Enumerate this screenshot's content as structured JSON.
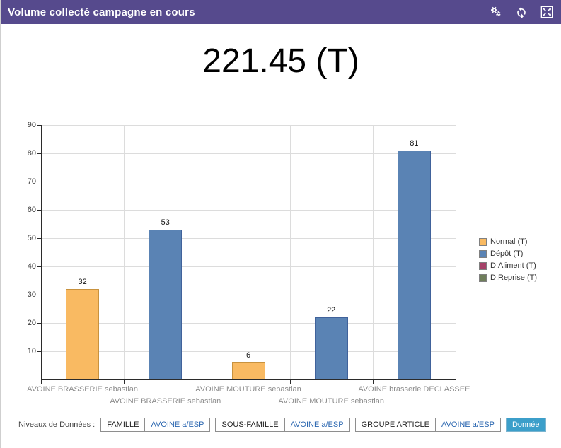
{
  "header": {
    "title": "Volume collecté campagne en cours"
  },
  "kpi": {
    "value": "221.45 (T)"
  },
  "chart_data": {
    "type": "bar",
    "title": "221.45 (T)",
    "categories": [
      "AVOINE BRASSERIE sebastian",
      "AVOINE BRASSERIE sebastian",
      "AVOINE MOUTURE sebastian",
      "AVOINE MOUTURE sebastian",
      "AVOINE brasserie DECLASSEE"
    ],
    "values": [
      32,
      53,
      6,
      22,
      81
    ],
    "value_series": [
      "Normal (T)",
      "Dépôt (T)",
      "Normal (T)",
      "Dépôt (T)",
      "Dépôt (T)"
    ],
    "series_colors": {
      "Normal (T)": {
        "fill": "#F9BA62",
        "border": "#C8923E"
      },
      "Dépôt (T)": {
        "fill": "#5A83B4",
        "border": "#40629B"
      },
      "D.Aliment (T)": {
        "fill": "#A64269",
        "border": "#7E3350"
      },
      "D.Reprise (T)": {
        "fill": "#6F7E5B",
        "border": "#556244"
      }
    },
    "legend": [
      {
        "label": "Normal (T)",
        "color": "#F9BA62"
      },
      {
        "label": "Dépôt (T)",
        "color": "#5A83B4"
      },
      {
        "label": "D.Aliment (T)",
        "color": "#A64269"
      },
      {
        "label": "D.Reprise (T)",
        "color": "#6F7E5B"
      }
    ],
    "legend_position": "right",
    "ylim": [
      0,
      90
    ],
    "yticks": [
      10,
      20,
      30,
      40,
      50,
      60,
      70,
      80,
      90
    ],
    "grid": true,
    "xlabel": "",
    "ylabel": ""
  },
  "footer": {
    "label": "Niveaux de Données :",
    "levels": [
      {
        "name": "FAMILLE",
        "link": "AVOINE a/ESP"
      },
      {
        "name": "SOUS-FAMILLE",
        "link": "AVOINE a/ESP"
      },
      {
        "name": "GROUPE ARTICLE",
        "link": "AVOINE a/ESP"
      }
    ],
    "active": "Donnée"
  },
  "colors": {
    "header_bg": "#564A8D",
    "link": "#2A66B0",
    "active_level_bg": "#3C9FCA"
  }
}
